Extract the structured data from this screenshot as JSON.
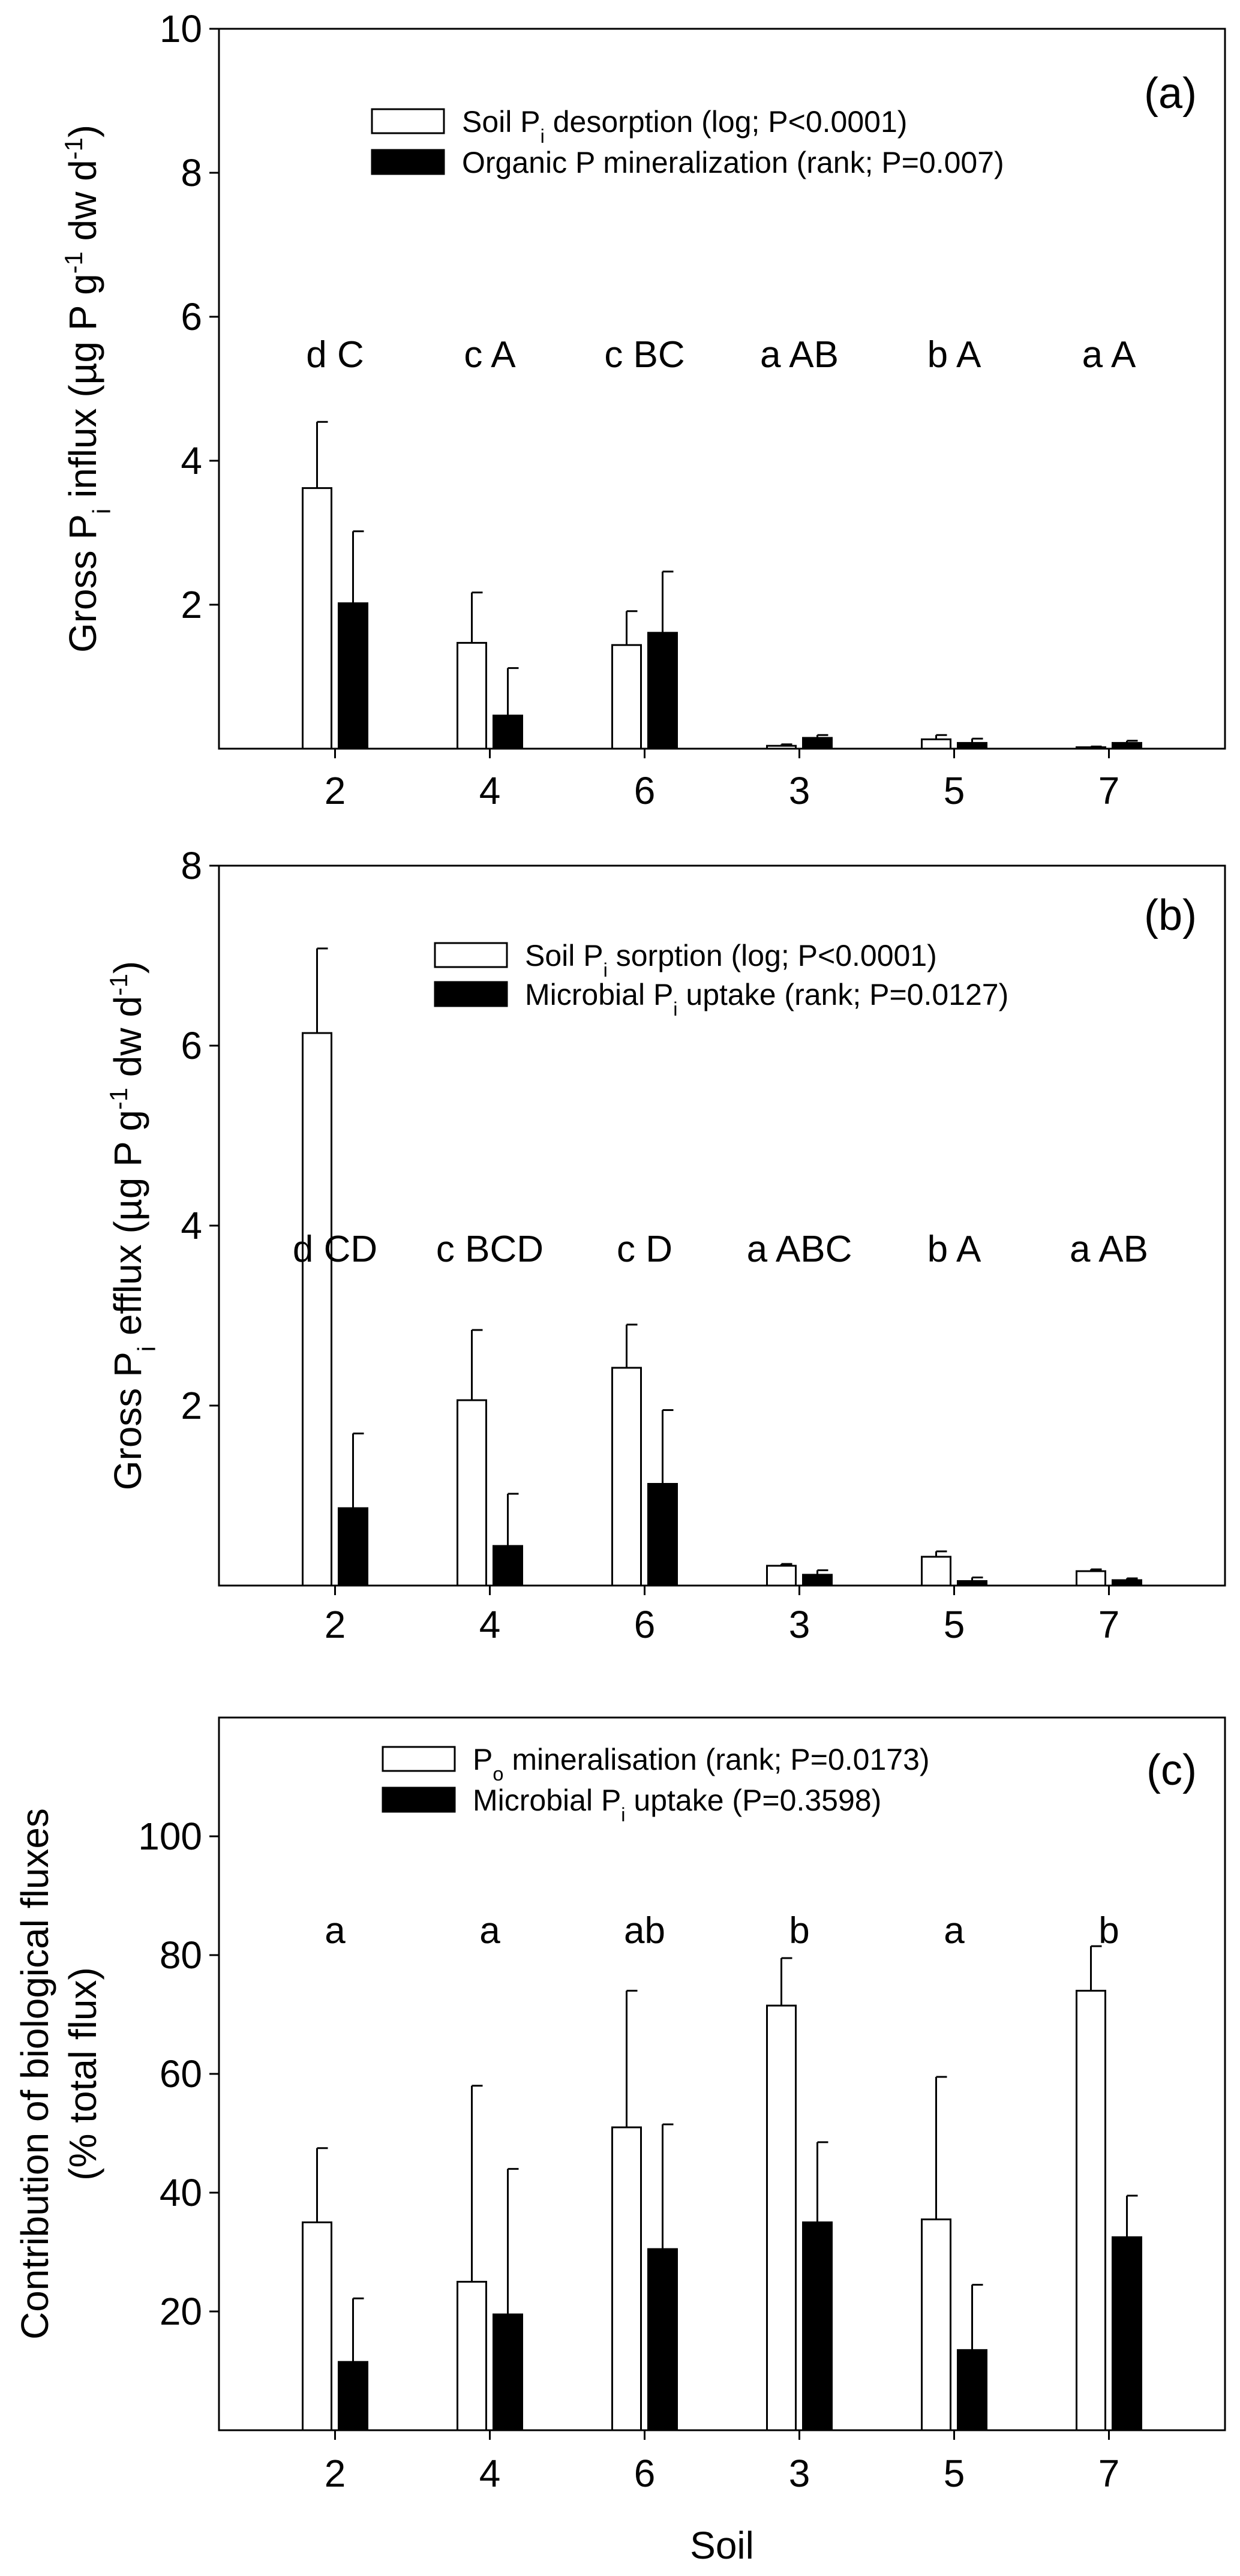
{
  "colors": {
    "open_bar": "#ffffff",
    "filled_bar": "#000000",
    "stroke": "#000000"
  },
  "chart_data": [
    {
      "type": "bar",
      "panel_label": "(a)",
      "categories": [
        "2",
        "4",
        "6",
        "3",
        "5",
        "7"
      ],
      "ylabel": "Gross Pᵢ influx (µg P g⁻¹ dw d⁻¹)",
      "ylabel_parts": [
        "Gross P",
        "i",
        " influx (µg P g",
        "-1",
        " dw d",
        "-1",
        ")"
      ],
      "ylim": [
        0,
        10
      ],
      "yticks": [
        "2",
        "4",
        "6",
        "8",
        "10"
      ],
      "legend_position": "top-center",
      "series": [
        {
          "name": "Soil Pᵢ desorption (log; P<0.0001)",
          "name_parts": [
            "Soil P",
            "i",
            " desorption (log; P<0.0001)"
          ],
          "fill": "open",
          "values": [
            3.62,
            1.47,
            1.44,
            0.04,
            0.13,
            0.02
          ],
          "errors": [
            0.92,
            0.7,
            0.47,
            0.02,
            0.06,
            0.01
          ]
        },
        {
          "name": "Organic P mineralization (rank; P=0.007)",
          "name_parts": [
            "Organic P mineralization (rank; P=0.007)"
          ],
          "fill": "filled",
          "values": [
            2.02,
            0.46,
            1.61,
            0.15,
            0.08,
            0.08
          ],
          "errors": [
            1.0,
            0.66,
            0.85,
            0.04,
            0.06,
            0.03
          ]
        }
      ],
      "annotations": [
        "d C",
        "c A",
        "c BC",
        "a AB",
        "b A",
        "a A"
      ],
      "annotation_y": 5.3
    },
    {
      "type": "bar",
      "panel_label": "(b)",
      "categories": [
        "2",
        "4",
        "6",
        "3",
        "5",
        "7"
      ],
      "ylabel": "Gross Pᵢ efflux (µg P g⁻¹ dw d⁻¹)",
      "ylabel_parts": [
        "Gross P",
        "i",
        " efflux (µg P g",
        "-1",
        " dw d",
        "-1",
        ")"
      ],
      "ylim": [
        0,
        8
      ],
      "yticks": [
        "2",
        "4",
        "6",
        "8"
      ],
      "legend_position": "top-center",
      "series": [
        {
          "name": "Soil Pᵢ sorption (log; P<0.0001)",
          "name_parts": [
            "Soil P",
            "i",
            " sorption (log; P<0.0001)"
          ],
          "fill": "open",
          "values": [
            6.14,
            2.06,
            2.42,
            0.22,
            0.32,
            0.16
          ],
          "errors": [
            0.94,
            0.78,
            0.48,
            0.02,
            0.06,
            0.02
          ]
        },
        {
          "name": "Microbial Pᵢ uptake (rank; P=0.0127)",
          "name_parts": [
            "Microbial P",
            "i",
            " uptake (rank; P=0.0127)"
          ],
          "fill": "filled",
          "values": [
            0.86,
            0.44,
            1.13,
            0.12,
            0.05,
            0.06
          ],
          "errors": [
            0.83,
            0.58,
            0.82,
            0.05,
            0.04,
            0.02
          ]
        }
      ],
      "annotations": [
        "d CD",
        "c BCD",
        "c D",
        "a ABC",
        "b A",
        "a AB"
      ],
      "annotation_y": 3.6
    },
    {
      "type": "bar",
      "panel_label": "(c)",
      "categories": [
        "2",
        "4",
        "6",
        "3",
        "5",
        "7"
      ],
      "xlabel": "Soil",
      "ylabel": "Contribution of biological fluxes (% total flux)",
      "ylabel_lines": [
        "Contribution of biological fluxes",
        "(% total flux)"
      ],
      "ylim": [
        0,
        120
      ],
      "yticks": [
        "20",
        "40",
        "60",
        "80",
        "100"
      ],
      "legend_position": "top-center",
      "series": [
        {
          "name": "Pₒ mineralisation (rank; P=0.0173)",
          "name_parts": [
            "P",
            "o",
            " mineralisation (rank; P=0.0173)"
          ],
          "fill": "open",
          "values": [
            35,
            25,
            51,
            71.5,
            35.5,
            74
          ],
          "errors": [
            12.5,
            33,
            23,
            8,
            24,
            7.5
          ]
        },
        {
          "name": "Microbial Pᵢ uptake (P=0.3598)",
          "name_parts": [
            "Microbial P",
            "i",
            " uptake (P=0.3598)"
          ],
          "fill": "filled",
          "values": [
            11.5,
            19.5,
            30.5,
            35,
            13.5,
            32.5
          ],
          "errors": [
            10.7,
            24.5,
            21,
            13.5,
            11,
            7
          ]
        }
      ],
      "annotations": [
        "a",
        "a",
        "ab",
        "b",
        "a",
        "b"
      ],
      "annotation_y": 82
    }
  ]
}
